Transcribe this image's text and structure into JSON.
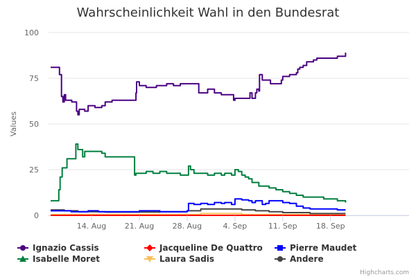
{
  "chart_data": {
    "type": "line",
    "title": "Wahrscheinlichkeit Wahl in den Bundesrat",
    "xlabel": "",
    "ylabel": "Values",
    "ylim": [
      0,
      100
    ],
    "yticks": [
      0,
      25,
      50,
      75,
      100
    ],
    "xlim": [
      -6.3,
      46.5
    ],
    "xticks": [
      {
        "label": "14. Aug",
        "value": 0
      },
      {
        "label": "21. Aug",
        "value": 7
      },
      {
        "label": "28. Aug",
        "value": 14
      },
      {
        "label": "4. Sep",
        "value": 21
      },
      {
        "label": "11. Sep",
        "value": 28
      },
      {
        "label": "18. Sep",
        "value": 35
      }
    ],
    "legend_position": "bottom-left",
    "credits": "Highcharts.com",
    "series": [
      {
        "name": "Ignazio Cassis",
        "color": "#4b0082",
        "marker": "circle",
        "points": [
          [
            -6,
            81
          ],
          [
            -4.8,
            81
          ],
          [
            -4.7,
            77
          ],
          [
            -4.4,
            65
          ],
          [
            -4.2,
            62
          ],
          [
            -4,
            66
          ],
          [
            -3.8,
            63
          ],
          [
            -3.5,
            63
          ],
          [
            -2.9,
            62
          ],
          [
            -2.4,
            62
          ],
          [
            -2.2,
            57
          ],
          [
            -2,
            55
          ],
          [
            -1.8,
            58
          ],
          [
            -1.5,
            58
          ],
          [
            -1,
            57
          ],
          [
            -0.5,
            60
          ],
          [
            0.5,
            59
          ],
          [
            1.5,
            60
          ],
          [
            2,
            62
          ],
          [
            3,
            63
          ],
          [
            5,
            63
          ],
          [
            6.3,
            63
          ],
          [
            6.5,
            67
          ],
          [
            6.6,
            73
          ],
          [
            7,
            71
          ],
          [
            7.5,
            71
          ],
          [
            8,
            70
          ],
          [
            9,
            70
          ],
          [
            9.5,
            71
          ],
          [
            10.5,
            71
          ],
          [
            11,
            72
          ],
          [
            12,
            71
          ],
          [
            13,
            72
          ],
          [
            14,
            72
          ],
          [
            15.5,
            72
          ],
          [
            15.7,
            67
          ],
          [
            16,
            67
          ],
          [
            17,
            69
          ],
          [
            18,
            67
          ],
          [
            19,
            66
          ],
          [
            20.5,
            66
          ],
          [
            20.8,
            63
          ],
          [
            21,
            64
          ],
          [
            22,
            64
          ],
          [
            23,
            64
          ],
          [
            23.2,
            67
          ],
          [
            23.5,
            64
          ],
          [
            24,
            67
          ],
          [
            24.2,
            69
          ],
          [
            24.5,
            68
          ],
          [
            24.6,
            77
          ],
          [
            25,
            74
          ],
          [
            26,
            74
          ],
          [
            26.2,
            72
          ],
          [
            27,
            72
          ],
          [
            27.8,
            74
          ],
          [
            28,
            76
          ],
          [
            29,
            77
          ],
          [
            30,
            78
          ],
          [
            30.2,
            80
          ],
          [
            30.5,
            81
          ],
          [
            31,
            82
          ],
          [
            31.5,
            84
          ],
          [
            32.5,
            85
          ],
          [
            33,
            86
          ],
          [
            35.5,
            86
          ],
          [
            36,
            87
          ],
          [
            36.5,
            87
          ],
          [
            37.2,
            89
          ]
        ]
      },
      {
        "name": "Jacqueline De Quattro",
        "color": "#ff0000",
        "marker": "diamond",
        "points": [
          [
            -6,
            0
          ],
          [
            37.2,
            0
          ]
        ]
      },
      {
        "name": "Pierre Maudet",
        "color": "#0000ff",
        "marker": "square",
        "points": [
          [
            -6,
            2.5
          ],
          [
            -3,
            2
          ],
          [
            -0.5,
            2.5
          ],
          [
            1,
            2
          ],
          [
            7,
            2.5
          ],
          [
            10,
            2
          ],
          [
            14,
            2.5
          ],
          [
            14.2,
            6.5
          ],
          [
            15,
            6
          ],
          [
            16,
            6.5
          ],
          [
            17,
            6
          ],
          [
            18,
            7
          ],
          [
            19,
            6.5
          ],
          [
            19.5,
            7
          ],
          [
            20.5,
            6
          ],
          [
            21,
            9
          ],
          [
            22,
            8.5
          ],
          [
            23,
            8
          ],
          [
            23.5,
            7
          ],
          [
            24,
            8
          ],
          [
            25,
            6
          ],
          [
            25.5,
            6.5
          ],
          [
            26,
            8
          ],
          [
            27,
            8
          ],
          [
            28,
            7
          ],
          [
            29,
            6.5
          ],
          [
            30,
            5
          ],
          [
            31,
            4
          ],
          [
            32,
            3.5
          ],
          [
            34,
            3.5
          ],
          [
            36,
            3
          ],
          [
            37.2,
            3
          ]
        ]
      },
      {
        "name": "Isabelle Moret",
        "color": "#007f3f",
        "marker": "triangle",
        "points": [
          [
            -6,
            8
          ],
          [
            -5,
            8
          ],
          [
            -4.8,
            14
          ],
          [
            -4.6,
            21
          ],
          [
            -4.3,
            26
          ],
          [
            -4,
            26
          ],
          [
            -3.6,
            31
          ],
          [
            -3,
            31
          ],
          [
            -2.5,
            31
          ],
          [
            -2.3,
            39
          ],
          [
            -2,
            36
          ],
          [
            -1.6,
            36
          ],
          [
            -1.3,
            32
          ],
          [
            -1,
            35
          ],
          [
            0,
            35
          ],
          [
            1,
            35
          ],
          [
            1.5,
            34
          ],
          [
            2,
            32
          ],
          [
            3,
            32
          ],
          [
            6,
            32
          ],
          [
            6.3,
            22
          ],
          [
            6.5,
            23
          ],
          [
            7,
            23
          ],
          [
            8,
            24
          ],
          [
            9,
            23
          ],
          [
            10,
            24
          ],
          [
            11,
            23
          ],
          [
            12,
            23
          ],
          [
            13,
            22
          ],
          [
            14,
            22
          ],
          [
            14.2,
            27
          ],
          [
            14.5,
            25
          ],
          [
            15,
            23
          ],
          [
            16,
            23
          ],
          [
            17,
            22
          ],
          [
            18,
            23
          ],
          [
            19,
            22
          ],
          [
            19.5,
            23
          ],
          [
            20,
            23
          ],
          [
            20.5,
            22
          ],
          [
            21,
            25
          ],
          [
            21.5,
            24
          ],
          [
            22,
            22
          ],
          [
            22.5,
            21
          ],
          [
            23,
            20
          ],
          [
            23.5,
            18
          ],
          [
            24,
            18
          ],
          [
            24.5,
            16
          ],
          [
            25,
            16
          ],
          [
            26,
            15
          ],
          [
            27,
            14
          ],
          [
            28,
            13
          ],
          [
            29,
            12
          ],
          [
            30,
            11
          ],
          [
            31,
            10
          ],
          [
            32,
            10
          ],
          [
            34,
            9
          ],
          [
            35,
            9
          ],
          [
            36,
            8
          ],
          [
            37.2,
            7
          ]
        ]
      },
      {
        "name": "Laura Sadis",
        "color": "#f7c059",
        "marker": "triangle-down",
        "points": [
          [
            -6,
            0.5
          ],
          [
            10,
            0.5
          ],
          [
            14,
            0.5
          ],
          [
            16,
            1
          ],
          [
            22,
            0.5
          ],
          [
            37.2,
            0.5
          ]
        ]
      },
      {
        "name": "Andere",
        "color": "#444444",
        "marker": "circle",
        "points": [
          [
            -6,
            3
          ],
          [
            -4,
            2.5
          ],
          [
            -2,
            2
          ],
          [
            2,
            1.8
          ],
          [
            10,
            2
          ],
          [
            14,
            2.5
          ],
          [
            16,
            3.5
          ],
          [
            20,
            3.5
          ],
          [
            22,
            3
          ],
          [
            24,
            2.5
          ],
          [
            26,
            2
          ],
          [
            28,
            1.5
          ],
          [
            32,
            1
          ],
          [
            37.2,
            1
          ]
        ]
      }
    ]
  }
}
